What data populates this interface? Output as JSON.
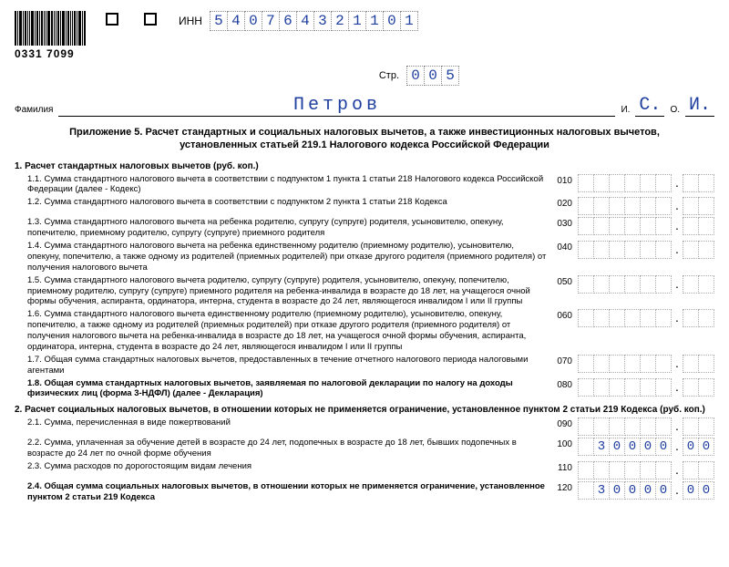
{
  "barcode_number": "0331 7099",
  "inn_label": "ИНН",
  "inn_digits": [
    "5",
    "4",
    "0",
    "7",
    "6",
    "4",
    "3",
    "2",
    "1",
    "1",
    "0",
    "1"
  ],
  "page_label": "Стр.",
  "page_digits": [
    "0",
    "0",
    "5"
  ],
  "surname_label": "Фамилия",
  "surname_value": "Петров",
  "i_label": "И.",
  "o_label": "О.",
  "initial_1": "С.",
  "initial_2": "И.",
  "title": "Приложение 5. Расчет стандартных и социальных налоговых вычетов, а также инвестиционных налоговых вычетов, установленных статьей 219.1 Налогового кодекса Российской Федерации",
  "section1_head": "1. Расчет стандартных налоговых вычетов (руб. коп.)",
  "section2_head": "2. Расчет социальных налоговых вычетов, в отношении которых не применяется ограничение, установленное пунктом 2 статьи 219 Кодекса (руб. коп.)",
  "items": [
    {
      "num": "1.1.",
      "text": "Сумма стандартного налогового вычета в соответствии с подпунктом 1 пункта 1 статьи 218 Налогового кодекса Российской Федерации (далее - Кодекс)",
      "code": "010",
      "int": [
        "",
        "",
        "",
        "",
        "",
        ""
      ],
      "frac": [
        "",
        ""
      ],
      "bold": false
    },
    {
      "num": "1.2.",
      "text": "Сумма стандартного налогового вычета в соответствии с подпунктом 2 пункта 1 статьи 218 Кодекса",
      "code": "020",
      "int": [
        "",
        "",
        "",
        "",
        "",
        ""
      ],
      "frac": [
        "",
        ""
      ],
      "bold": false
    },
    {
      "num": "1.3.",
      "text": "Сумма стандартного налогового вычета на ребенка родителю, супругу (супруге) родителя, усыновителю, опекуну, попечителю, приемному родителю, супругу (супруге) приемного родителя",
      "code": "030",
      "int": [
        "",
        "",
        "",
        "",
        "",
        ""
      ],
      "frac": [
        "",
        ""
      ],
      "bold": false
    },
    {
      "num": "1.4.",
      "text": "Сумма стандартного налогового вычета на ребенка единственному родителю (приемному родителю), усыновителю, опекуну, попечителю, а также одному из родителей (приемных родителей) при отказе другого родителя (приемного родителя) от получения налогового вычета",
      "code": "040",
      "int": [
        "",
        "",
        "",
        "",
        "",
        ""
      ],
      "frac": [
        "",
        ""
      ],
      "bold": false
    },
    {
      "num": "1.5.",
      "text": "Сумма стандартного налогового вычета родителю, супругу (супруге) родителя, усыновителю, опекуну, попечителю, приемному родителю, супругу (супруге) приемного родителя на ребенка-инвалида в возрасте до 18 лет, на учащегося очной формы обучения, аспиранта, ординатора, интерна, студента в возрасте до 24 лет, являющегося инвалидом I или II группы",
      "code": "050",
      "int": [
        "",
        "",
        "",
        "",
        "",
        ""
      ],
      "frac": [
        "",
        ""
      ],
      "bold": false
    },
    {
      "num": "1.6.",
      "text": "Сумма стандартного налогового вычета единственному родителю (приемному родителю), усыновителю, опекуну, попечителю, а также одному из родителей (приемных родителей) при отказе другого родителя (приемного родителя) от получения налогового вычета на ребенка-инвалида в возрасте до 18 лет, на учащегося очной формы обучения, аспиранта, ординатора, интерна, студента в возрасте до 24 лет, являющегося инвалидом I или II группы",
      "code": "060",
      "int": [
        "",
        "",
        "",
        "",
        "",
        ""
      ],
      "frac": [
        "",
        ""
      ],
      "bold": false
    },
    {
      "num": "1.7.",
      "text": "Общая сумма стандартных налоговых вычетов, предоставленных в течение отчетного налогового периода налоговыми агентами",
      "code": "070",
      "int": [
        "",
        "",
        "",
        "",
        "",
        ""
      ],
      "frac": [
        "",
        ""
      ],
      "bold": false
    },
    {
      "num": "1.8.",
      "text": "Общая сумма стандартных налоговых вычетов, заявляемая по налоговой декларации по налогу на доходы физических лиц (форма 3-НДФЛ) (далее - Декларация)",
      "code": "080",
      "int": [
        "",
        "",
        "",
        "",
        "",
        ""
      ],
      "frac": [
        "",
        ""
      ],
      "bold": true
    }
  ],
  "items2": [
    {
      "num": "2.1.",
      "text": "Сумма, перечисленная в виде пожертвований",
      "code": "090",
      "int": [
        "",
        "",
        "",
        "",
        "",
        ""
      ],
      "frac": [
        "",
        ""
      ],
      "bold": false
    },
    {
      "num": "2.2.",
      "text": "Сумма, уплаченная за обучение детей в возрасте до 24 лет, подопечных в возрасте до 18 лет, бывших подопечных в возрасте до 24 лет по очной форме обучения",
      "code": "100",
      "int": [
        "",
        "3",
        "0",
        "0",
        "0",
        "0"
      ],
      "frac": [
        "0",
        "0"
      ],
      "bold": false
    },
    {
      "num": "2.3.",
      "text": "Сумма расходов по дорогостоящим видам лечения",
      "code": "110",
      "int": [
        "",
        "",
        "",
        "",
        "",
        ""
      ],
      "frac": [
        "",
        ""
      ],
      "bold": false
    },
    {
      "num": "2.4.",
      "text": "Общая сумма социальных налоговых вычетов, в отношении которых не применяется ограничение, установленное пунктом 2 статьи 219 Кодекса",
      "code": "120",
      "int": [
        "",
        "3",
        "0",
        "0",
        "0",
        "0"
      ],
      "frac": [
        "0",
        "0"
      ],
      "bold": true
    }
  ],
  "colors": {
    "ink": "#2040a0",
    "border": "#888888"
  }
}
